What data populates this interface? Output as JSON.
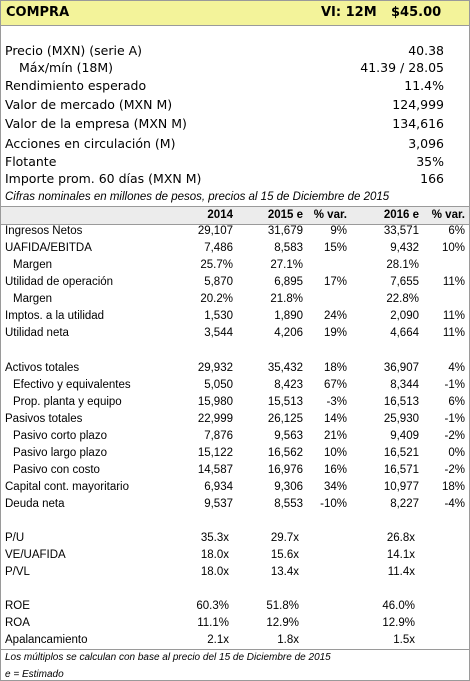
{
  "header": {
    "title": "COMPRA",
    "horizon": "VI: 12M",
    "price": "$45.00"
  },
  "summary": [
    [
      "Precio (MXN) (serie A)",
      "40.38"
    ],
    [
      "Máx/mín (18M)",
      "41.39 / 28.05"
    ],
    [
      "Rendimiento esperado",
      "11.4%"
    ],
    [
      "Valor de mercado (MXN M)",
      "124,999"
    ],
    [
      "Valor de la empresa (MXN M)",
      "134,616"
    ],
    [
      "Acciones en circulación (M)",
      "3,096"
    ],
    [
      "Flotante",
      "35%"
    ],
    [
      "Importe prom. 60 días (MXN M)",
      "166"
    ]
  ],
  "note": "Cifras nominales en millones de pesos, precios al 15 de Diciembre de 2015",
  "table": {
    "columns": [
      "2014",
      "2015 e",
      "% var.",
      "2016 e",
      "% var."
    ],
    "groups": [
      [
        [
          "Ingresos Netos",
          "29,107",
          "31,679",
          "9%",
          "33,571",
          "6%"
        ],
        [
          "UAFIDA/EBITDA",
          "7,486",
          "8,583",
          "15%",
          "9,432",
          "10%"
        ],
        [
          "Margen",
          "25.7%",
          "27.1%",
          null,
          "28.1%",
          null
        ],
        [
          "Utilidad de operación",
          "5,870",
          "6,895",
          "17%",
          "7,655",
          "11%"
        ],
        [
          "Margen",
          "20.2%",
          "21.8%",
          null,
          "22.8%",
          null
        ],
        [
          "Imptos. a la utilidad",
          "1,530",
          "1,890",
          "24%",
          "2,090",
          "11%"
        ],
        [
          "Utilidad neta",
          "3,544",
          "4,206",
          "19%",
          "4,664",
          "11%"
        ]
      ],
      [
        [
          "Activos totales",
          "29,932",
          "35,432",
          "18%",
          "36,907",
          "4%"
        ],
        [
          "Efectivo y equivalentes",
          "5,050",
          "8,423",
          "67%",
          "8,344",
          "-1%"
        ],
        [
          "Prop. planta y equipo",
          "15,980",
          "15,513",
          "-3%",
          "16,513",
          "6%"
        ],
        [
          "Pasivos totales",
          "22,999",
          "26,125",
          "14%",
          "25,930",
          "-1%"
        ],
        [
          "Pasivo corto plazo",
          "7,876",
          "9,563",
          "21%",
          "9,409",
          "-2%"
        ],
        [
          "Pasivo largo plazo",
          "15,122",
          "16,562",
          "10%",
          "16,521",
          "0%"
        ],
        [
          "Pasivo con costo",
          "14,587",
          "16,976",
          "16%",
          "16,571",
          "-2%"
        ],
        [
          "Capital cont. mayoritario",
          "6,934",
          "9,306",
          "34%",
          "10,977",
          "18%"
        ],
        [
          "Deuda neta",
          "9,537",
          "8,553",
          "-10%",
          "8,227",
          "-4%"
        ]
      ],
      [
        [
          "P/U",
          "35.3x",
          "29.7x",
          null,
          "26.8x",
          null
        ],
        [
          "VE/UAFIDA",
          "18.0x",
          "15.6x",
          null,
          "14.1x",
          null
        ],
        [
          "P/VL",
          "18.0x",
          "13.4x",
          null,
          "11.4x",
          null
        ]
      ],
      [
        [
          "ROE",
          "60.3%",
          "51.8%",
          null,
          "46.0%",
          null
        ],
        [
          "ROA",
          "11.1%",
          "12.9%",
          null,
          "12.9%",
          null
        ],
        [
          "Apalancamiento",
          "2.1x",
          "1.8x",
          null,
          "1.5x",
          null
        ]
      ]
    ]
  },
  "footnotes": [
    "Los múltiplos se calculan con base al precio del 15 de Diciembre de 2015",
    "e = Estimado"
  ]
}
